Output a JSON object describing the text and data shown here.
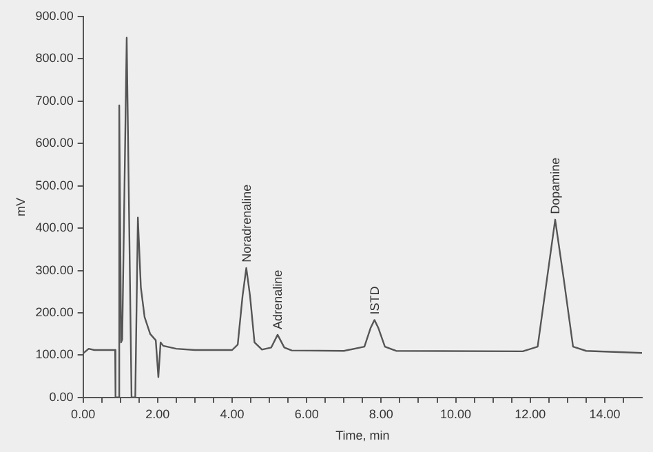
{
  "chart_data": {
    "type": "line",
    "xlabel": "Time, min",
    "ylabel": "mV",
    "xlim": [
      0,
      15
    ],
    "ylim": [
      0,
      900
    ],
    "xticks": [
      {
        "value": 0,
        "label": "0.00"
      },
      {
        "value": 0.5,
        "label": null
      },
      {
        "value": 1,
        "label": null
      },
      {
        "value": 1.5,
        "label": null
      },
      {
        "value": 2,
        "label": "2.00"
      },
      {
        "value": 2.5,
        "label": null
      },
      {
        "value": 3,
        "label": null
      },
      {
        "value": 3.5,
        "label": null
      },
      {
        "value": 4,
        "label": "4.00"
      },
      {
        "value": 4.5,
        "label": null
      },
      {
        "value": 5,
        "label": null
      },
      {
        "value": 5.5,
        "label": null
      },
      {
        "value": 6,
        "label": "6.00"
      },
      {
        "value": 6.5,
        "label": null
      },
      {
        "value": 7,
        "label": null
      },
      {
        "value": 7.5,
        "label": null
      },
      {
        "value": 8,
        "label": "8.00"
      },
      {
        "value": 8.5,
        "label": null
      },
      {
        "value": 9,
        "label": null
      },
      {
        "value": 9.5,
        "label": null
      },
      {
        "value": 10,
        "label": "10.00"
      },
      {
        "value": 10.5,
        "label": null
      },
      {
        "value": 11,
        "label": null
      },
      {
        "value": 11.5,
        "label": null
      },
      {
        "value": 12,
        "label": "12.00"
      },
      {
        "value": 12.5,
        "label": null
      },
      {
        "value": 13,
        "label": null
      },
      {
        "value": 13.5,
        "label": null
      },
      {
        "value": 14,
        "label": "14.00"
      },
      {
        "value": 14.5,
        "label": null
      }
    ],
    "yticks": [
      {
        "value": 0,
        "label": "0.00"
      },
      {
        "value": 100,
        "label": "100.00"
      },
      {
        "value": 200,
        "label": "200.00"
      },
      {
        "value": 300,
        "label": "300.00"
      },
      {
        "value": 400,
        "label": "400.00"
      },
      {
        "value": 500,
        "label": "500.00"
      },
      {
        "value": 600,
        "label": "600.00"
      },
      {
        "value": 700,
        "label": "700.00"
      },
      {
        "value": 800,
        "label": "800.00"
      },
      {
        "value": 900,
        "label": "900.00"
      }
    ],
    "grid": false,
    "legend": false,
    "marker": "none",
    "line_style": "solid",
    "series": [
      {
        "color": "#555555",
        "x": [
          0,
          0.15,
          0.3,
          0.86,
          0.87,
          0.95,
          0.97,
          1.02,
          1.05,
          1.17,
          1.3,
          1.4,
          1.47,
          1.55,
          1.65,
          1.8,
          1.95,
          2.02,
          2.08,
          2.15,
          2.5,
          3.0,
          4.0,
          4.15,
          4.28,
          4.38,
          4.48,
          4.6,
          4.8,
          5.05,
          5.22,
          5.4,
          5.6,
          7.0,
          7.55,
          7.72,
          7.82,
          7.92,
          8.1,
          8.4,
          11.8,
          12.2,
          12.45,
          12.67,
          12.9,
          13.15,
          13.5,
          15
        ],
        "values": [
          104,
          115,
          112,
          112,
          0,
          0,
          690,
          130,
          137,
          850,
          0,
          0,
          425,
          260,
          190,
          150,
          135,
          48,
          130,
          122,
          115,
          112,
          112,
          125,
          240,
          306,
          240,
          130,
          113,
          118,
          148,
          118,
          111,
          110,
          120,
          165,
          183,
          165,
          120,
          110,
          109,
          120,
          280,
          420,
          280,
          120,
          110,
          105
        ]
      }
    ],
    "annotations": [
      {
        "text": "Noradrenaline",
        "x": 4.38,
        "y": 306
      },
      {
        "text": "Adrenaline",
        "x": 5.22,
        "y": 148
      },
      {
        "text": "ISTD",
        "x": 7.82,
        "y": 183
      },
      {
        "text": "Dopamine",
        "x": 12.67,
        "y": 420
      }
    ]
  }
}
